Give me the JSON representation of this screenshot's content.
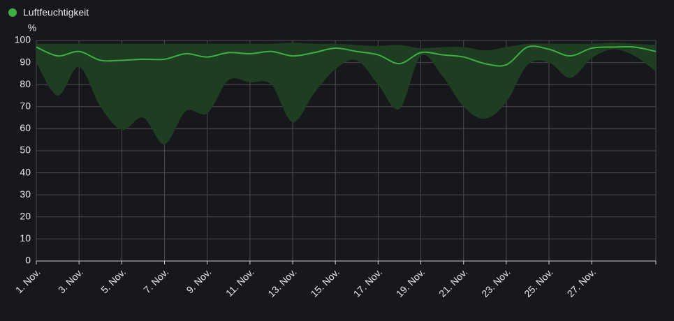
{
  "chart_data": {
    "type": "line-band",
    "ylabel": "%",
    "categories": [
      "1. Nov.",
      null,
      "3. Nov.",
      null,
      "5. Nov.",
      null,
      "7. Nov.",
      null,
      "9. Nov.",
      null,
      "11. Nov.",
      null,
      "13. Nov.",
      null,
      "15. Nov.",
      null,
      "17. Nov.",
      null,
      "19. Nov.",
      null,
      "21. Nov.",
      null,
      "23. Nov.",
      null,
      "25. Nov.",
      null,
      "27. Nov.",
      null,
      null,
      null
    ],
    "series": [
      {
        "name": "Luftfeuchtigkeit",
        "color": "#3cb043",
        "band_color": "#1f3d21",
        "values": [
          97,
          93,
          95,
          91,
          91,
          91.5,
          91.5,
          94,
          92.5,
          94.5,
          94,
          95,
          93,
          94.5,
          96.5,
          95,
          93.5,
          89.5,
          94.5,
          93.5,
          92.5,
          89.5,
          89,
          97,
          96,
          93,
          96.5,
          97,
          97,
          95
        ],
        "min": [
          90,
          75,
          88,
          70,
          59.5,
          65,
          53,
          68,
          67,
          82,
          81,
          80,
          63,
          76,
          87,
          91,
          80,
          69,
          93,
          84,
          70,
          64.5,
          72,
          89,
          90,
          83,
          92,
          96,
          93,
          86
        ],
        "max": [
          98.5,
          98.5,
          98.5,
          98.5,
          98.5,
          98.5,
          98.5,
          98.5,
          98.5,
          98.5,
          98.5,
          98.5,
          99,
          98.5,
          98.5,
          98,
          97.5,
          98,
          96.5,
          97,
          97,
          95.5,
          97,
          98.5,
          98.5,
          98.5,
          98.5,
          99,
          98.5,
          98
        ]
      }
    ],
    "ylim": [
      0,
      100
    ],
    "yticks": [
      0,
      10,
      20,
      30,
      40,
      50,
      60,
      70,
      80,
      90,
      100
    ],
    "grid": true
  }
}
